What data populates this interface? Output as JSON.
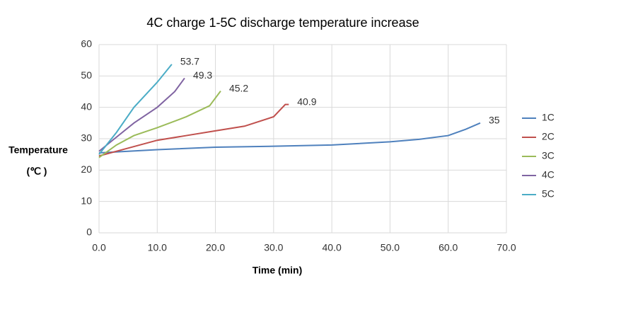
{
  "chart_data": {
    "type": "line",
    "title": "4C charge 1-5C discharge temperature increase",
    "x_label": "Time  (min)",
    "y_label": "Temperature",
    "y_unit": "(℃ )",
    "xlim": [
      0,
      70
    ],
    "xticks": [
      {
        "value": 0,
        "label": "0.0"
      },
      {
        "value": 10,
        "label": "10.0"
      },
      {
        "value": 20,
        "label": "20.0"
      },
      {
        "value": 30,
        "label": "30.0"
      },
      {
        "value": 40,
        "label": "40.0"
      },
      {
        "value": 50,
        "label": "50.0"
      },
      {
        "value": 60,
        "label": "60.0"
      },
      {
        "value": 70,
        "label": "70.0"
      }
    ],
    "ylim": [
      0,
      60
    ],
    "yticks": [
      0,
      10,
      20,
      30,
      40,
      50,
      60
    ],
    "grid": true,
    "legend": "right",
    "series": [
      {
        "name": "1C",
        "color": "#4f81bd",
        "x": [
          0,
          10,
          20,
          30,
          40,
          50,
          55,
          60,
          63,
          65.5
        ],
        "values": [
          25.5,
          26.5,
          27.3,
          27.6,
          28,
          29,
          29.8,
          31,
          33,
          35
        ]
      },
      {
        "name": "2C",
        "color": "#c0504d",
        "x": [
          0,
          5,
          10,
          15,
          20,
          25,
          30,
          32,
          32.6
        ],
        "values": [
          24.5,
          27,
          29.5,
          31,
          32.5,
          34,
          37,
          40.9,
          40.9
        ]
      },
      {
        "name": "3C",
        "color": "#9bbb59",
        "x": [
          0,
          3,
          6,
          10,
          15,
          19,
          20.9
        ],
        "values": [
          24,
          28,
          31,
          33.5,
          37,
          40.5,
          45.2
        ]
      },
      {
        "name": "4C",
        "color": "#8064a2",
        "x": [
          0,
          3,
          6,
          10,
          13,
          14.7
        ],
        "values": [
          26,
          30.5,
          35,
          40,
          45,
          49.3
        ]
      },
      {
        "name": "5C",
        "color": "#4bacc6",
        "x": [
          0,
          3,
          6,
          10,
          12.5
        ],
        "values": [
          25,
          32,
          40,
          48,
          53.7
        ]
      }
    ]
  }
}
